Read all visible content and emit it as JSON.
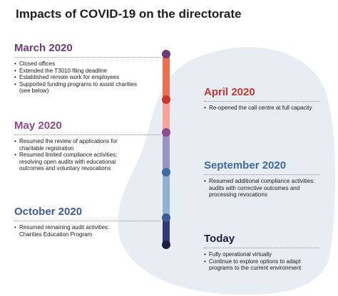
{
  "title": "Impacts of COVID-19 on the directorate",
  "colors": {
    "blob": "#e8ecf3",
    "march": "#6d3a78",
    "april": "#c8372c",
    "may": "#8e4a8c",
    "september": "#3f6a9d",
    "october": "#3d5a98",
    "today": "#1a1f40",
    "segment_march": "#ef6e4f",
    "segment_april": "#f3a39a",
    "segment_may": "#9a93c8",
    "segment_september": "#8fb2d2",
    "segment_october": "#2f3a7a"
  },
  "entries": [
    {
      "heading": "March 2020",
      "items": [
        "Closed offices",
        "Extended the T3010 filing deadline",
        "Established remote work for employees",
        "Supported funding programs to assist charities (see below)"
      ]
    },
    {
      "heading": "April 2020",
      "items": [
        "Re-opened the call centre at full capacity"
      ]
    },
    {
      "heading": "May 2020",
      "items": [
        "Resumed the review of applications for charitable registration",
        "Resumed limited compliance activities: resolving open audits with educational outcomes and voluntary revocations"
      ]
    },
    {
      "heading": "September 2020",
      "items": [
        "Resumed additional compliance activities: audits with corrective outcomes and processing revocations"
      ]
    },
    {
      "heading": "October 2020",
      "items": [
        "Resumed remaining audit activities: Charities Education Program"
      ]
    },
    {
      "heading": "Today",
      "items": [
        "Fully operational virtually",
        "Continue to explore options to adapt programs to the current environment"
      ]
    }
  ]
}
